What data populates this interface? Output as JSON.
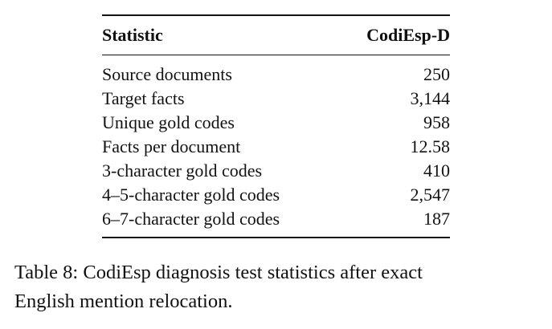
{
  "table": {
    "headers": [
      "Statistic",
      "CodiEsp-D"
    ],
    "rows": [
      {
        "label": "Source documents",
        "value": "250"
      },
      {
        "label": "Target facts",
        "value": "3,144"
      },
      {
        "label": "Unique gold codes",
        "value": "958"
      },
      {
        "label": "Facts per document",
        "value": "12.58"
      },
      {
        "label": "3-character gold codes",
        "value": "410"
      },
      {
        "label": "4–5-character gold codes",
        "value": "2,547"
      },
      {
        "label": "6–7-character gold codes",
        "value": "187"
      }
    ]
  },
  "caption": {
    "line1": "Table 8: CodiEsp diagnosis test statistics after exact",
    "line2": "English mention relocation."
  }
}
